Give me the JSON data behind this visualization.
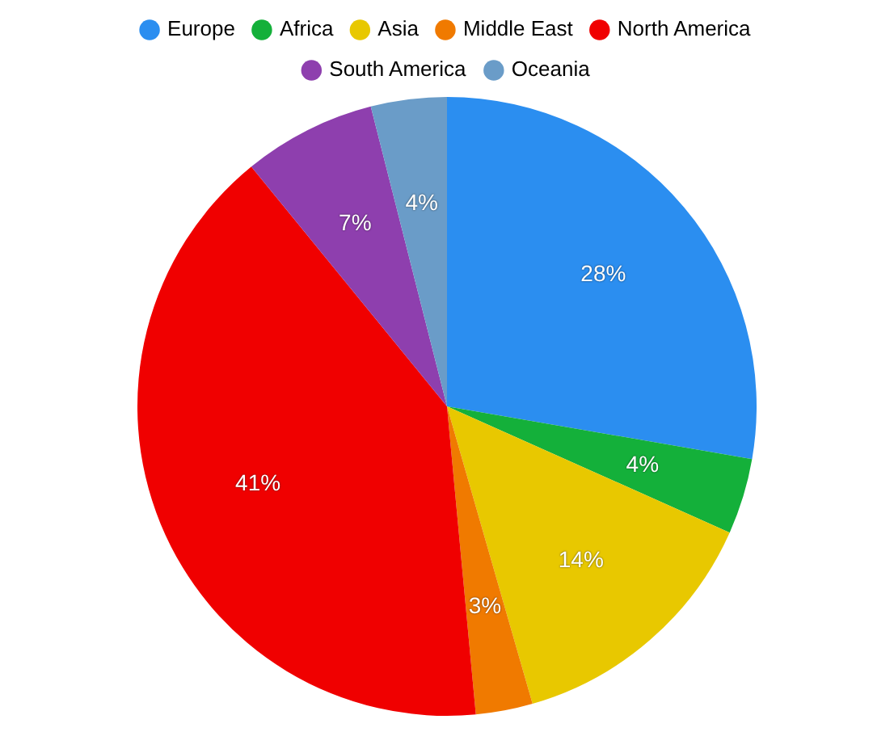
{
  "chart_data": {
    "type": "pie",
    "categories": [
      "Europe",
      "Africa",
      "Asia",
      "Middle East",
      "North America",
      "South America",
      "Oceania"
    ],
    "values": [
      28,
      4,
      14,
      3,
      41,
      7,
      4
    ],
    "colors": [
      "#2b8ef0",
      "#14b03a",
      "#e8c800",
      "#f07a00",
      "#f00000",
      "#8e3fae",
      "#6a9cc8"
    ],
    "value_labels": [
      "28%",
      "4%",
      "14%",
      "3%",
      "41%",
      "7%",
      "4%"
    ],
    "legend": "top"
  }
}
